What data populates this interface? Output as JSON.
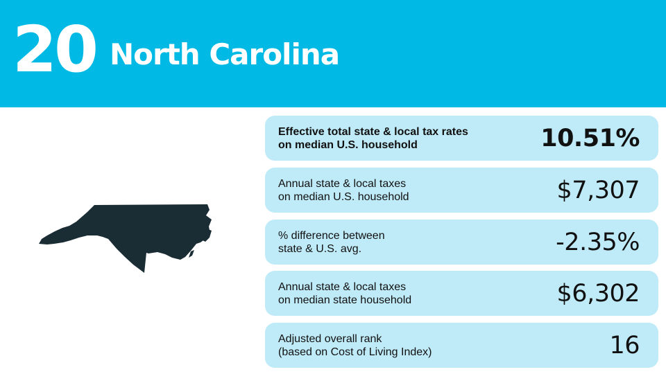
{
  "header": {
    "rank": "20",
    "state": "North Carolina"
  },
  "colors": {
    "header_bg": "#00b9e4",
    "card_bg": "#bfeaf7",
    "map_fill": "#1a2d35"
  },
  "map": {
    "icon": "north-carolina-map"
  },
  "stats": [
    {
      "label_line1": "Effective total state & local tax rates",
      "label_line2": "on median U.S. household",
      "value": "10.51%"
    },
    {
      "label_line1": "Annual state & local taxes",
      "label_line2": "on median U.S. household",
      "value": "$7,307"
    },
    {
      "label_line1": "% difference between",
      "label_line2": "state & U.S. avg.",
      "value": "-2.35%"
    },
    {
      "label_line1": "Annual state & local taxes",
      "label_line2": "on median state household",
      "value": "$6,302"
    },
    {
      "label_line1": "Adjusted overall rank",
      "label_line2": "(based on Cost of Living Index)",
      "value": "16"
    }
  ]
}
